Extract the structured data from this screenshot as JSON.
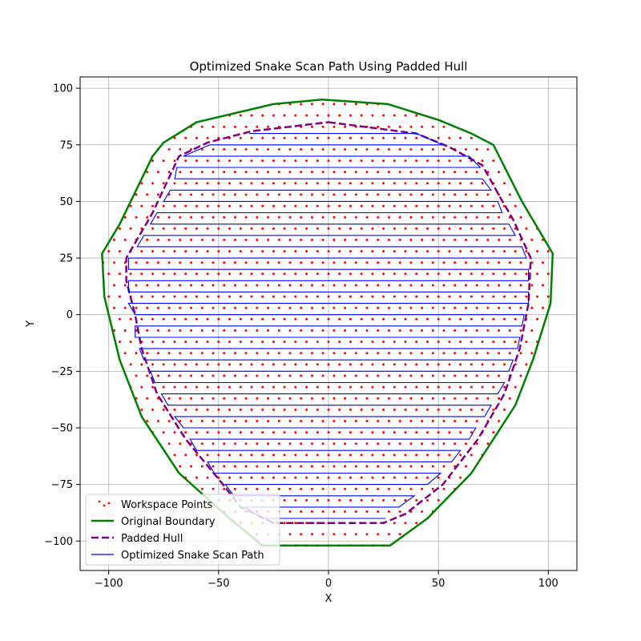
{
  "chart_data": {
    "type": "scatter",
    "title": "Optimized Snake Scan Path Using Padded Hull",
    "xlabel": "X",
    "ylabel": "Y",
    "xlim": [
      -113,
      113
    ],
    "ylim": [
      -113,
      105
    ],
    "xticks": [
      -100,
      -50,
      0,
      50,
      100
    ],
    "yticks": [
      -100,
      -75,
      -50,
      -25,
      0,
      25,
      50,
      75,
      100
    ],
    "xtick_labels": [
      "−100",
      "−50",
      "0",
      "50",
      "100"
    ],
    "ytick_labels": [
      "−100",
      "−75",
      "−50",
      "−25",
      "0",
      "25",
      "50",
      "75",
      "100"
    ],
    "grid": true,
    "legend_position": "lower-left",
    "colors": {
      "workspace": "#ff0000",
      "boundary": "#008000",
      "padded": "#800080",
      "snake": "#0000ff",
      "grid": "#b0b0b0"
    },
    "original_boundary": [
      [
        -3,
        95
      ],
      [
        27,
        93
      ],
      [
        50,
        86
      ],
      [
        65,
        80
      ],
      [
        75,
        75
      ],
      [
        88,
        50
      ],
      [
        102,
        27
      ],
      [
        101,
        5
      ],
      [
        93,
        -20
      ],
      [
        85,
        -40
      ],
      [
        65,
        -70
      ],
      [
        45,
        -90
      ],
      [
        28,
        -102
      ],
      [
        -30,
        -102
      ],
      [
        -45,
        -90
      ],
      [
        -68,
        -70
      ],
      [
        -85,
        -45
      ],
      [
        -95,
        -20
      ],
      [
        -102,
        8
      ],
      [
        -103,
        27
      ],
      [
        -95,
        40
      ],
      [
        -80,
        70
      ],
      [
        -75,
        76
      ],
      [
        -60,
        85
      ],
      [
        -25,
        93
      ],
      [
        -3,
        95
      ]
    ],
    "padded_hull": [
      [
        0,
        85
      ],
      [
        40,
        80
      ],
      [
        55,
        74
      ],
      [
        70,
        66
      ],
      [
        78,
        52
      ],
      [
        84,
        42
      ],
      [
        92,
        25
      ],
      [
        91,
        5
      ],
      [
        87,
        -15
      ],
      [
        80,
        -35
      ],
      [
        68,
        -55
      ],
      [
        52,
        -75
      ],
      [
        35,
        -88
      ],
      [
        25,
        -92
      ],
      [
        -25,
        -92
      ],
      [
        -40,
        -85
      ],
      [
        -48,
        -75
      ],
      [
        -65,
        -55
      ],
      [
        -78,
        -35
      ],
      [
        -85,
        -15
      ],
      [
        -88,
        0
      ],
      [
        -92,
        15
      ],
      [
        -92,
        25
      ],
      [
        -80,
        45
      ],
      [
        -68,
        70
      ],
      [
        -55,
        76
      ],
      [
        -35,
        81
      ],
      [
        0,
        85
      ]
    ],
    "snake_rows": [
      {
        "y": 80,
        "x_min": -36,
        "x_max": 40
      },
      {
        "y": 75,
        "x_min": -54,
        "x_max": 52
      },
      {
        "y": 70,
        "x_min": -66,
        "x_max": 64
      },
      {
        "y": 65,
        "x_min": -69,
        "x_max": 69
      },
      {
        "y": 60,
        "x_min": -70,
        "x_max": 70
      },
      {
        "y": 55,
        "x_min": -72,
        "x_max": 74
      },
      {
        "y": 50,
        "x_min": -75,
        "x_max": 77
      },
      {
        "y": 45,
        "x_min": -78,
        "x_max": 79
      },
      {
        "y": 40,
        "x_min": -81,
        "x_max": 82
      },
      {
        "y": 35,
        "x_min": -84,
        "x_max": 85
      },
      {
        "y": 30,
        "x_min": -87,
        "x_max": 88
      },
      {
        "y": 25,
        "x_min": -91,
        "x_max": 90
      },
      {
        "y": 20,
        "x_min": -91,
        "x_max": 91
      },
      {
        "y": 15,
        "x_min": -91,
        "x_max": 91
      },
      {
        "y": 10,
        "x_min": -91,
        "x_max": 91
      },
      {
        "y": 5,
        "x_min": -91,
        "x_max": 91
      },
      {
        "y": 0,
        "x_min": -88,
        "x_max": 89
      },
      {
        "y": -5,
        "x_min": -88,
        "x_max": 88
      },
      {
        "y": -10,
        "x_min": -88,
        "x_max": 87
      },
      {
        "y": -15,
        "x_min": -86,
        "x_max": 86
      },
      {
        "y": -20,
        "x_min": -84,
        "x_max": 84
      },
      {
        "y": -25,
        "x_min": -81,
        "x_max": 82
      },
      {
        "y": -30,
        "x_min": -79,
        "x_max": 80
      },
      {
        "y": -35,
        "x_min": -76,
        "x_max": 77
      },
      {
        "y": -40,
        "x_min": -73,
        "x_max": 74
      },
      {
        "y": -45,
        "x_min": -70,
        "x_max": 71
      },
      {
        "y": -50,
        "x_min": -66,
        "x_max": 67
      },
      {
        "y": -55,
        "x_min": -63,
        "x_max": 64
      },
      {
        "y": -60,
        "x_min": -60,
        "x_max": 60
      },
      {
        "y": -65,
        "x_min": -55,
        "x_max": 56
      },
      {
        "y": -70,
        "x_min": -52,
        "x_max": 51
      },
      {
        "y": -75,
        "x_min": -47,
        "x_max": 45
      },
      {
        "y": -80,
        "x_min": -43,
        "x_max": 39
      },
      {
        "y": -85,
        "x_min": -38,
        "x_max": 32
      },
      {
        "y": -90,
        "x_min": -30,
        "x_max": 26
      }
    ],
    "workspace_points": {
      "note_shape": "dense dot grid filling the original boundary",
      "y_spacing": 5,
      "x_spacing": 5
    },
    "legend": [
      {
        "label": "Workspace Points",
        "key": "workspace"
      },
      {
        "label": "Original Boundary",
        "key": "boundary"
      },
      {
        "label": "Padded Hull",
        "key": "padded"
      },
      {
        "label": "Optimized Snake Scan Path",
        "key": "snake"
      }
    ]
  }
}
